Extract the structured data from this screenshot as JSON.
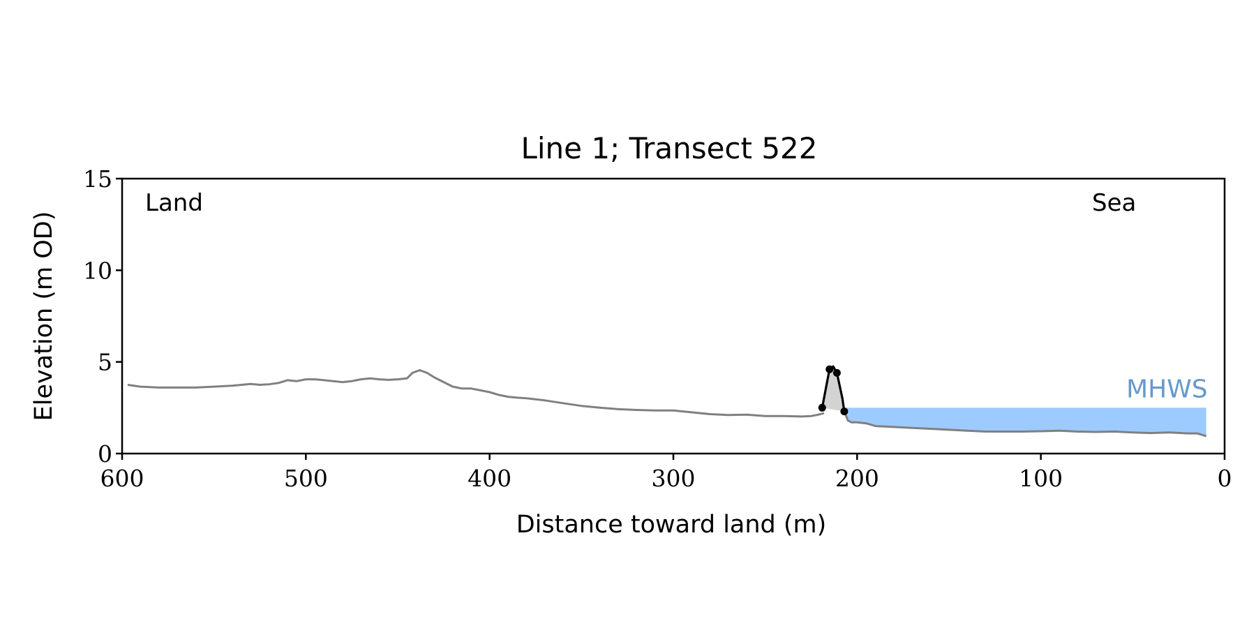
{
  "chart_data": {
    "type": "line",
    "title": "Line 1; Transect 522",
    "xlabel": "Distance toward land (m)",
    "ylabel": "Elevation (m OD)",
    "xlim": [
      600,
      0
    ],
    "ylim": [
      0,
      15
    ],
    "x_ticks": [
      600,
      500,
      400,
      300,
      200,
      100,
      0
    ],
    "y_ticks": [
      0,
      5,
      10,
      15
    ],
    "x_tick_labels": [
      "600",
      "500",
      "400",
      "300",
      "200",
      "100",
      "0"
    ],
    "y_tick_labels": [
      "0",
      "5",
      "10",
      "15"
    ],
    "grid": false,
    "legend": "none",
    "annotations": {
      "land": "Land",
      "sea": "Sea",
      "mhws": "MHWS"
    },
    "mhws_level": 2.5,
    "mhws_range": [
      207,
      10
    ],
    "colors": {
      "profile": "#808080",
      "dune_fill": "#d3d3d3",
      "dune_line": "#000000",
      "water": "#9ecbff",
      "mhws_text": "#6699cc"
    },
    "series": [
      {
        "role": "ground-profile",
        "x": [
          597,
          590,
          580,
          570,
          560,
          550,
          540,
          530,
          525,
          520,
          515,
          510,
          505,
          500,
          495,
          490,
          485,
          480,
          475,
          470,
          465,
          460,
          455,
          450,
          445,
          442,
          438,
          434,
          430,
          425,
          420,
          415,
          410,
          405,
          400,
          395,
          390,
          385,
          380,
          370,
          360,
          350,
          340,
          330,
          320,
          310,
          300,
          290,
          280,
          270,
          260,
          250,
          240,
          230,
          225,
          222,
          218
        ],
        "y": [
          3.75,
          3.65,
          3.6,
          3.6,
          3.6,
          3.65,
          3.7,
          3.8,
          3.75,
          3.78,
          3.85,
          4.0,
          3.95,
          4.05,
          4.05,
          4.0,
          3.95,
          3.9,
          3.95,
          4.05,
          4.1,
          4.05,
          4.02,
          4.05,
          4.1,
          4.4,
          4.55,
          4.4,
          4.15,
          3.9,
          3.65,
          3.55,
          3.55,
          3.45,
          3.35,
          3.2,
          3.1,
          3.05,
          3.02,
          2.9,
          2.75,
          2.6,
          2.5,
          2.42,
          2.38,
          2.35,
          2.35,
          2.25,
          2.15,
          2.1,
          2.12,
          2.05,
          2.05,
          2.02,
          2.05,
          2.1,
          2.2
        ]
      },
      {
        "role": "dune-crest",
        "x": [
          219,
          215,
          213,
          211,
          208,
          207
        ],
        "y": [
          2.5,
          4.6,
          4.75,
          4.4,
          3.0,
          2.3
        ]
      },
      {
        "role": "foreshore-profile",
        "x": [
          207,
          205,
          203,
          200,
          195,
          190,
          180,
          170,
          160,
          150,
          140,
          130,
          120,
          110,
          100,
          90,
          80,
          70,
          60,
          50,
          40,
          30,
          20,
          15,
          10
        ],
        "y": [
          2.3,
          1.8,
          1.7,
          1.7,
          1.65,
          1.5,
          1.45,
          1.4,
          1.35,
          1.3,
          1.25,
          1.2,
          1.2,
          1.2,
          1.22,
          1.25,
          1.2,
          1.18,
          1.2,
          1.15,
          1.12,
          1.15,
          1.1,
          1.1,
          0.95
        ]
      },
      {
        "role": "dune-vertices",
        "x": [
          219,
          215,
          211,
          207
        ],
        "y": [
          2.5,
          4.6,
          4.4,
          2.3
        ]
      }
    ]
  }
}
